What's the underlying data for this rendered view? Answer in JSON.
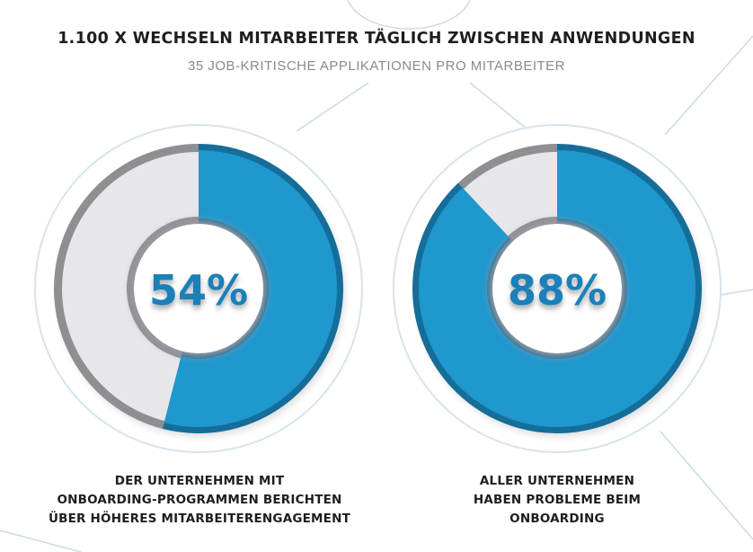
{
  "header": {
    "title": "1.100 X WECHSELN MITARBEITER TÄGLICH ZWISCHEN ANWENDUNGEN",
    "subtitle": "35 JOB-KRITISCHE APPLIKATIONEN PRO MITARBEITER"
  },
  "colors": {
    "accent": "#1f98ce",
    "accent_dark": "#156d99",
    "remainder": "#e7e7ea",
    "outline": "#d6e4ee",
    "label_text": "#1f7fb8"
  },
  "chart_data": [
    {
      "type": "pie",
      "variant": "donut",
      "values": [
        54,
        46
      ],
      "highlight_value": 54,
      "center_label": "54%",
      "caption_lines": [
        "DER UNTERNEHMEN MIT",
        "ONBOARDING-PROGRAMMEN BERICHTEN",
        "ÜBER HÖHERES MITARBEITERENGAGEMENT"
      ]
    },
    {
      "type": "pie",
      "variant": "donut",
      "values": [
        88,
        12
      ],
      "highlight_value": 88,
      "center_label": "88%",
      "caption_lines": [
        "ALLER UNTERNEHMEN",
        "HABEN PROBLEME BEIM",
        "ONBOARDING"
      ]
    }
  ]
}
